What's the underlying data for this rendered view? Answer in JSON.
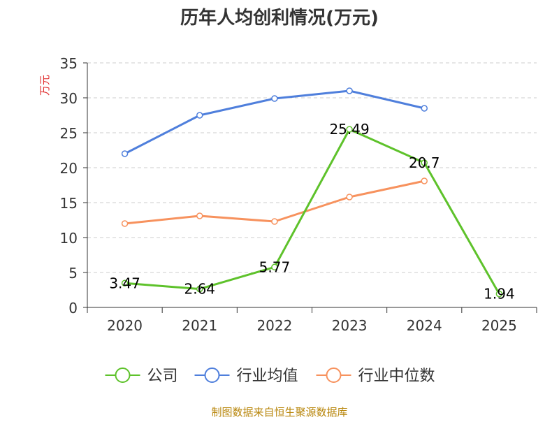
{
  "chart_data": {
    "type": "line",
    "title": "历年人均创利情况(万元)",
    "ylabel": "万元",
    "xlabel": "",
    "categories": [
      "2020",
      "2021",
      "2022",
      "2023",
      "2024",
      "2025"
    ],
    "ylim": [
      0,
      35
    ],
    "yticks": [
      0,
      5,
      10,
      15,
      20,
      25,
      30,
      35
    ],
    "grid": true,
    "legend_position": "bottom-center",
    "series": [
      {
        "name": "公司",
        "color": "#5ec22b",
        "values": [
          3.47,
          2.64,
          5.77,
          25.49,
          20.7,
          1.94
        ],
        "labels": [
          "3.47",
          "2.64",
          "5.77",
          "25.49",
          "20.7",
          "1.94"
        ],
        "show_labels": true
      },
      {
        "name": "行业均值",
        "color": "#4f7fdc",
        "values": [
          22.0,
          27.5,
          29.9,
          31.0,
          28.5,
          null
        ],
        "show_labels": false
      },
      {
        "name": "行业中位数",
        "color": "#f7925e",
        "values": [
          12.0,
          13.1,
          12.3,
          15.8,
          18.1,
          null
        ],
        "show_labels": false
      }
    ]
  },
  "footer": {
    "source": "制图数据来自恒生聚源数据库"
  },
  "colors": {
    "title": "#333333",
    "axis": "#333333",
    "grid": "#cccccc",
    "ylabel": "#e03030",
    "footer": "#b8860b"
  }
}
